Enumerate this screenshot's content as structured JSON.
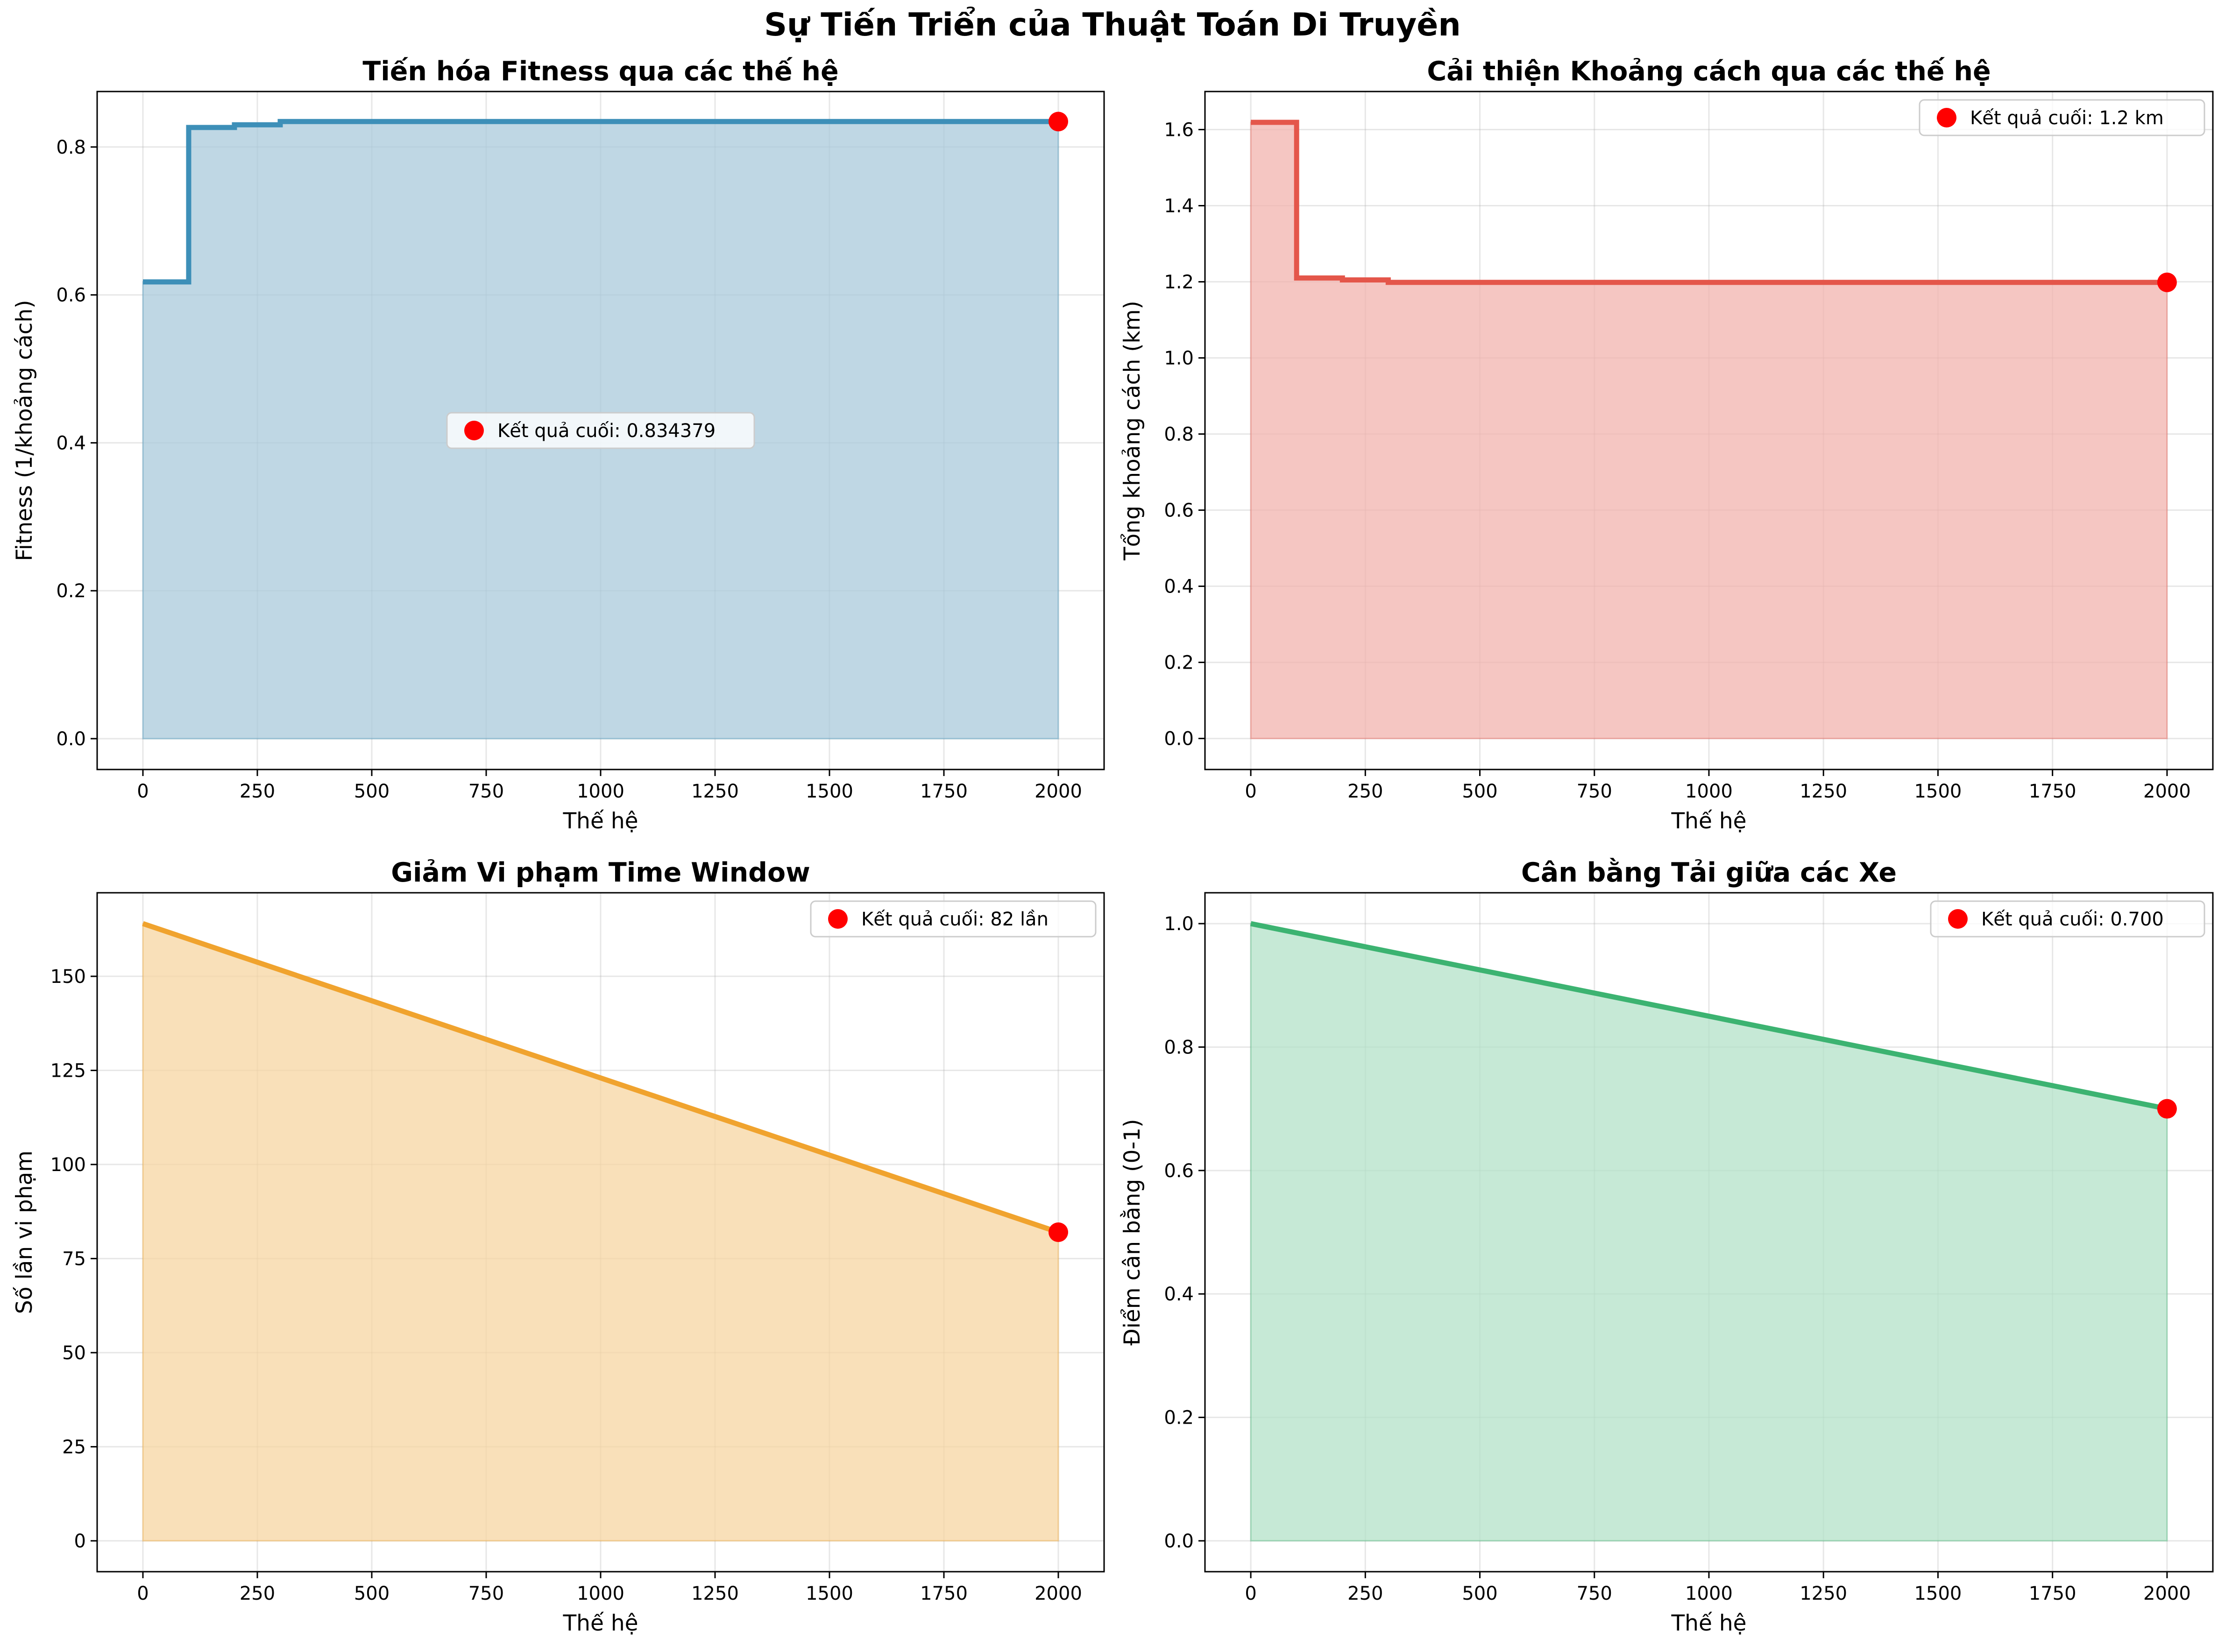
{
  "figure_title": "Sự Tiến Triển của Thuật Toán Di Truyền",
  "chart_data": [
    {
      "type": "area",
      "title": "Tiến hóa Fitness qua các thế hệ",
      "xlabel": "Thế hệ",
      "ylabel": "Fitness (1/khoảng cách)",
      "color": "#3d8fb8",
      "fill_color": "#a9cadb",
      "step": true,
      "xlim": [
        -100,
        2100
      ],
      "ylim": [
        -0.0417,
        0.875
      ],
      "xticks": [
        0,
        250,
        500,
        750,
        1000,
        1250,
        1500,
        1750,
        2000
      ],
      "yticks": [
        0.0,
        0.2,
        0.4,
        0.6,
        0.8
      ],
      "ytick_labels": [
        "0.0",
        "0.2",
        "0.4",
        "0.6",
        "0.8"
      ],
      "x": [
        0,
        100,
        200,
        300,
        2000
      ],
      "y": [
        0.6176,
        0.8264,
        0.83,
        0.8344,
        0.834379
      ],
      "final_marker": {
        "x": 2000,
        "y": 0.834379,
        "color": "#ff0000"
      },
      "legend": {
        "label": "Kết quả cuối: 0.834379",
        "position": "center"
      },
      "grid": true
    },
    {
      "type": "area",
      "title": "Cải thiện Khoảng cách qua các thế hệ",
      "xlabel": "Thế hệ",
      "ylabel": "Tổng khoảng cách (km)",
      "color": "#e4564a",
      "fill_color": "#f2b3ae",
      "step": true,
      "xlim": [
        -100,
        2100
      ],
      "ylim": [
        -0.0815,
        1.7
      ],
      "xticks": [
        0,
        250,
        500,
        750,
        1000,
        1250,
        1500,
        1750,
        2000
      ],
      "yticks": [
        0.0,
        0.2,
        0.4,
        0.6,
        0.8,
        1.0,
        1.2,
        1.4,
        1.6
      ],
      "ytick_labels": [
        "0.0",
        "0.2",
        "0.4",
        "0.6",
        "0.8",
        "1.0",
        "1.2",
        "1.4",
        "1.6"
      ],
      "x": [
        0,
        100,
        200,
        300,
        2000
      ],
      "y": [
        1.619,
        1.21,
        1.205,
        1.1985,
        1.1985
      ],
      "final_marker": {
        "x": 2000,
        "y": 1.1985,
        "color": "#ff0000"
      },
      "legend": {
        "label": "Kết quả cuối: 1.2 km",
        "position": "upper right"
      },
      "grid": true
    },
    {
      "type": "area",
      "title": "Giảm Vi phạm Time Window",
      "xlabel": "Thế hệ",
      "ylabel": "Số lần vi phạm",
      "color": "#f0a32e",
      "fill_color": "#f7d6a1",
      "step": false,
      "xlim": [
        -100,
        2100
      ],
      "ylim": [
        -8.2,
        172.2
      ],
      "xticks": [
        0,
        250,
        500,
        750,
        1000,
        1250,
        1500,
        1750,
        2000
      ],
      "yticks": [
        0,
        25,
        50,
        75,
        100,
        125,
        150
      ],
      "ytick_labels": [
        "0",
        "25",
        "50",
        "75",
        "100",
        "125",
        "150"
      ],
      "x": [
        0,
        2000
      ],
      "y": [
        164,
        82
      ],
      "final_marker": {
        "x": 2000,
        "y": 82,
        "color": "#ff0000"
      },
      "legend": {
        "label": "Kết quả cuối: 82 lần",
        "position": "upper right"
      },
      "grid": true
    },
    {
      "type": "area",
      "title": "Cân bằng Tải giữa các Xe",
      "xlabel": "Thế hệ",
      "ylabel": "Điểm cân bằng (0-1)",
      "color": "#3cb371",
      "fill_color": "#b3e2c8",
      "step": false,
      "xlim": [
        -100,
        2100
      ],
      "ylim": [
        -0.05,
        1.05
      ],
      "xticks": [
        0,
        250,
        500,
        750,
        1000,
        1250,
        1500,
        1750,
        2000
      ],
      "yticks": [
        0.0,
        0.2,
        0.4,
        0.6,
        0.8,
        1.0
      ],
      "ytick_labels": [
        "0.0",
        "0.2",
        "0.4",
        "0.6",
        "0.8",
        "1.0"
      ],
      "x": [
        0,
        2000
      ],
      "y": [
        1.0,
        0.7
      ],
      "final_marker": {
        "x": 2000,
        "y": 0.7,
        "color": "#ff0000"
      },
      "legend": {
        "label": "Kết quả cuối: 0.700",
        "position": "upper right"
      },
      "grid": true
    }
  ]
}
